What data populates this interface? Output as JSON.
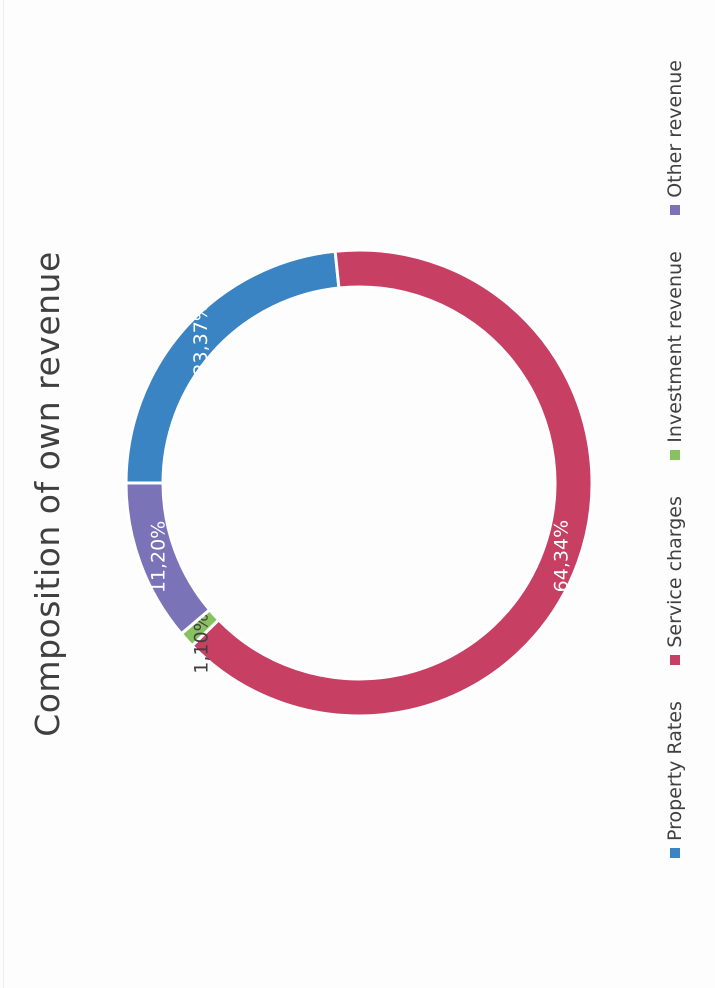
{
  "chart_data": {
    "type": "pie",
    "donut": true,
    "title": "Composition of own revenue",
    "legend_position": "bottom",
    "series": [
      {
        "name": "Property Rates",
        "value": 23.37,
        "label": "23,37%",
        "color": "#3b84c4"
      },
      {
        "name": "Service charges",
        "value": 64.34,
        "label": "64,34%",
        "color": "#c73f63"
      },
      {
        "name": "Investment revenue",
        "value": 1.1,
        "label": "1,10%",
        "color": "#88c160"
      },
      {
        "name": "Other revenue",
        "value": 11.2,
        "label": "11,20%",
        "color": "#7b73b8"
      }
    ]
  }
}
